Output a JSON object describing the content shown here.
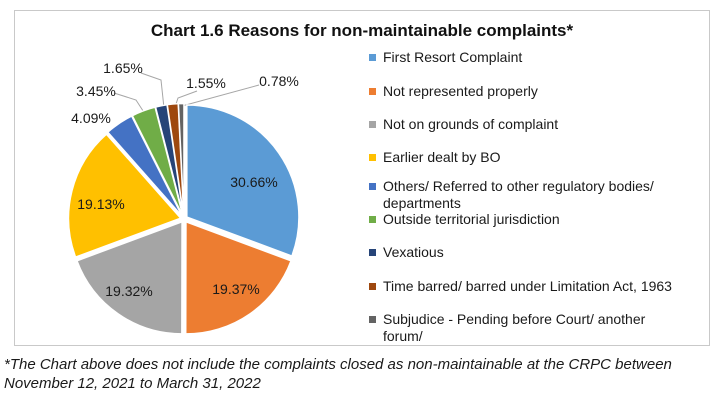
{
  "title": "Chart 1.6 Reasons for non-maintainable complaints*",
  "chart_data": {
    "type": "pie",
    "title": "Chart 1.6 Reasons for non-maintainable complaints*",
    "legend_position": "right",
    "start_angle_deg": 0,
    "direction": "clockwise",
    "exploded": true,
    "categories": [
      "First Resort Complaint",
      "Not represented properly",
      "Not on grounds of complaint",
      "Earlier dealt by BO",
      "Others/ Referred to other regulatory bodies/ departments",
      "Outside territorial jurisdiction",
      "Vexatious",
      "Time barred/ barred under Limitation Act, 1963",
      "Subjudice - Pending before Court/ another forum/"
    ],
    "values": [
      30.66,
      19.37,
      19.32,
      19.13,
      4.09,
      3.45,
      1.65,
      1.55,
      0.78
    ],
    "value_labels": [
      "30.66%",
      "19.37%",
      "19.32%",
      "19.13%",
      "4.09%",
      "3.45%",
      "1.65%",
      "1.55%",
      "0.78%"
    ],
    "colors": [
      "#5B9BD5",
      "#ED7D31",
      "#A5A5A5",
      "#FFC000",
      "#4472C4",
      "#70AD47",
      "#264478",
      "#9E480E",
      "#636363"
    ]
  },
  "footnote": {
    "line1": "*The Chart above does not include the complaints closed as non-maintainable at the CRPC between",
    "line2": "November 12, 2021 to March 31, 2022"
  }
}
